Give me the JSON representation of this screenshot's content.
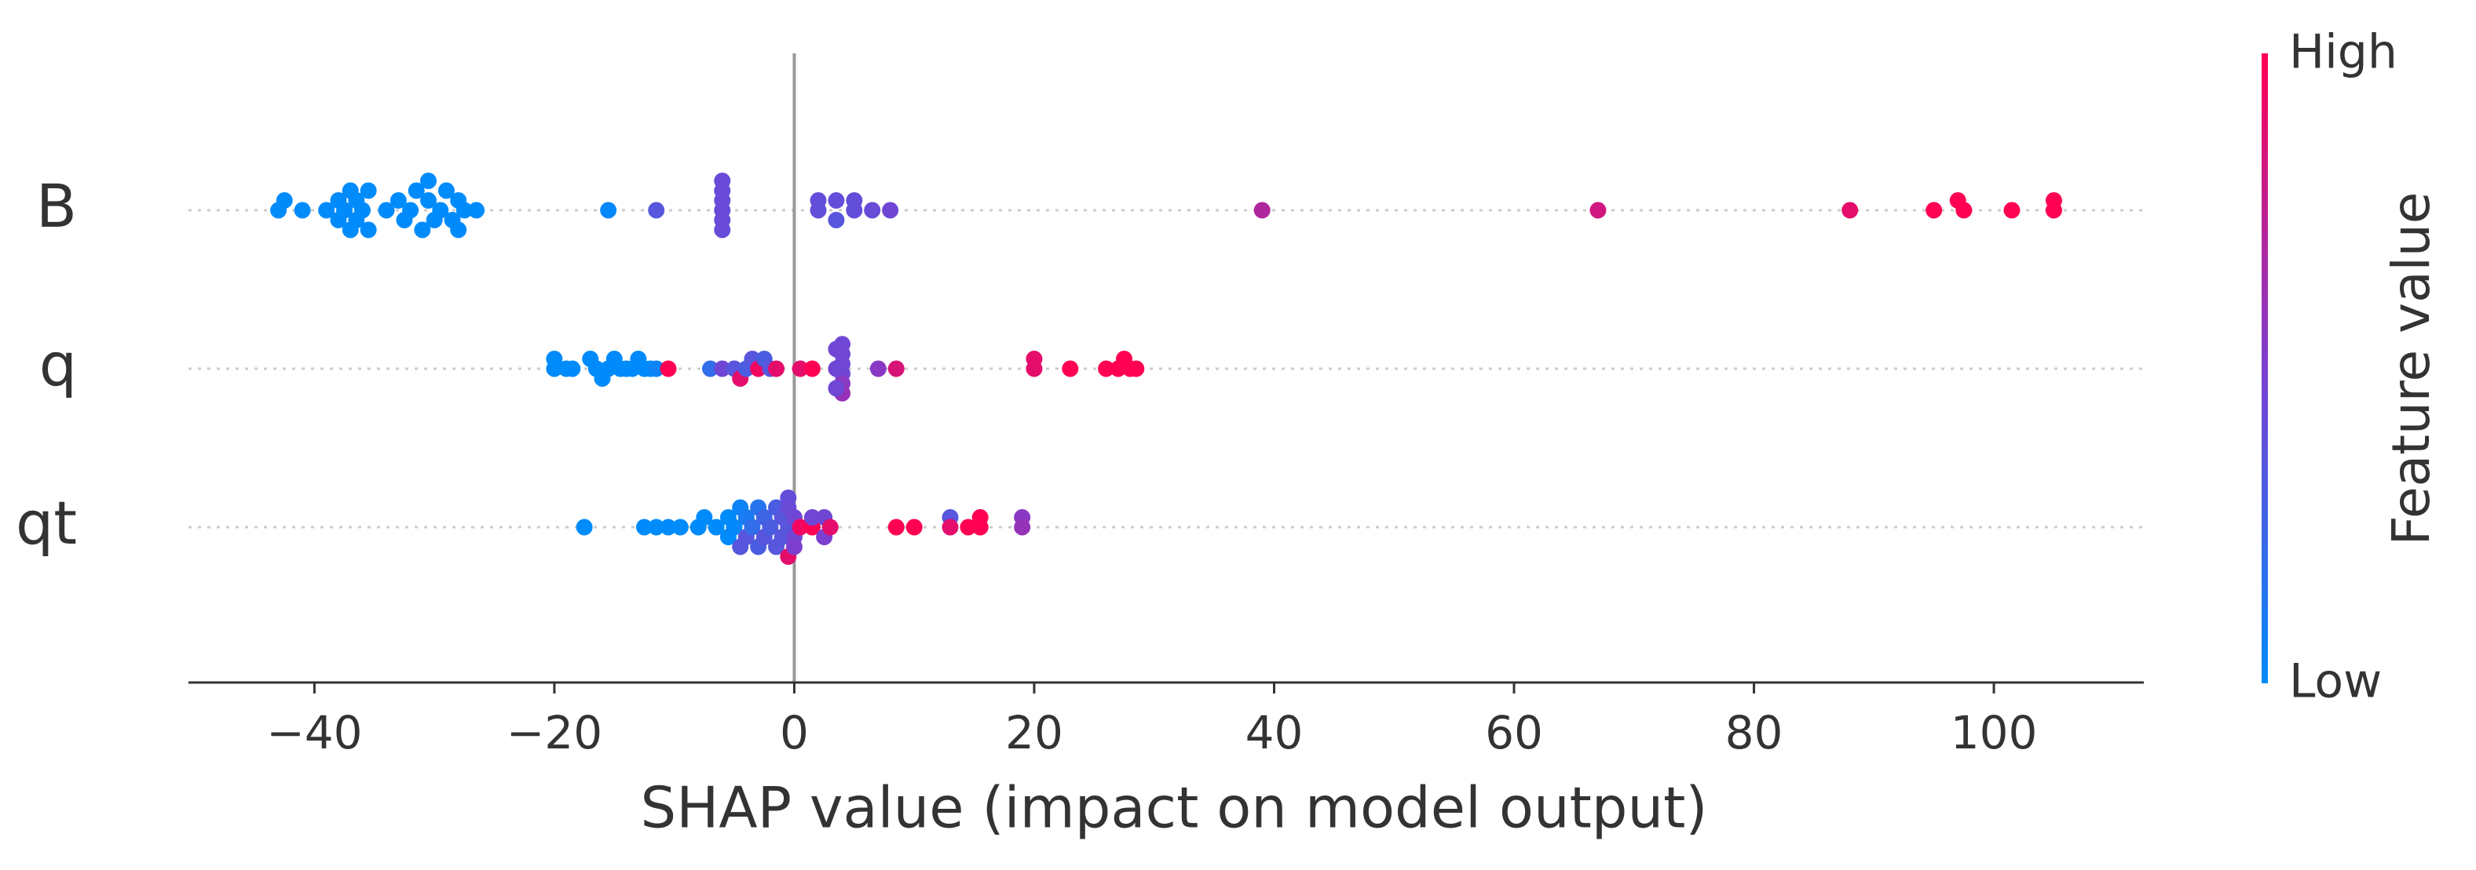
{
  "chart_data": {
    "type": "scatter",
    "subtype": "shap-beeswarm",
    "title": "",
    "xlabel": "SHAP value (impact on model output)",
    "ylabel": "",
    "xlim": [
      -50.5,
      112.5
    ],
    "xticks": [
      -40,
      -20,
      0,
      20,
      40,
      60,
      80,
      100
    ],
    "xtick_labels": [
      "−40",
      "−20",
      "0",
      "20",
      "40",
      "60",
      "80",
      "100"
    ],
    "zero_line": 0,
    "grid": false,
    "colorbar": {
      "label": "Feature value",
      "high_label": "High",
      "low_label": "Low",
      "low_color": "#008bfb",
      "mid_color": "#7c3fd0",
      "high_color": "#ff0052"
    },
    "features": [
      {
        "name": "B",
        "points": [
          {
            "x": -43.0,
            "off": 0.0,
            "v": 0.0
          },
          {
            "x": -42.5,
            "off": 1.0,
            "v": 0.0
          },
          {
            "x": -41.0,
            "off": 0.0,
            "v": 0.0
          },
          {
            "x": -39.0,
            "off": 0.0,
            "v": 0.0
          },
          {
            "x": -38.0,
            "off": 1.0,
            "v": 0.0
          },
          {
            "x": -38.0,
            "off": -1.0,
            "v": 0.0
          },
          {
            "x": -37.5,
            "off": 0.0,
            "v": 0.0
          },
          {
            "x": -37.0,
            "off": 2.0,
            "v": 0.0
          },
          {
            "x": -37.0,
            "off": -2.0,
            "v": 0.0
          },
          {
            "x": -36.5,
            "off": 1.0,
            "v": 0.0
          },
          {
            "x": -36.5,
            "off": -1.0,
            "v": 0.0
          },
          {
            "x": -36.0,
            "off": 0.0,
            "v": 0.0
          },
          {
            "x": -35.5,
            "off": 2.0,
            "v": 0.0
          },
          {
            "x": -35.5,
            "off": -2.0,
            "v": 0.0
          },
          {
            "x": -34.0,
            "off": 0.0,
            "v": 0.0
          },
          {
            "x": -33.0,
            "off": 1.0,
            "v": 0.0
          },
          {
            "x": -32.5,
            "off": -1.0,
            "v": 0.0
          },
          {
            "x": -32.0,
            "off": 0.0,
            "v": 0.0
          },
          {
            "x": -31.5,
            "off": 2.0,
            "v": 0.0
          },
          {
            "x": -31.0,
            "off": -2.0,
            "v": 0.0
          },
          {
            "x": -30.5,
            "off": 1.0,
            "v": 0.0
          },
          {
            "x": -30.5,
            "off": 3.0,
            "v": 0.0
          },
          {
            "x": -30.0,
            "off": -1.0,
            "v": 0.0
          },
          {
            "x": -29.5,
            "off": 0.0,
            "v": 0.0
          },
          {
            "x": -29.0,
            "off": 2.0,
            "v": 0.0
          },
          {
            "x": -28.5,
            "off": -1.0,
            "v": 0.0
          },
          {
            "x": -28.0,
            "off": 1.0,
            "v": 0.0
          },
          {
            "x": -28.0,
            "off": -2.0,
            "v": 0.0
          },
          {
            "x": -27.5,
            "off": 0.0,
            "v": 0.0
          },
          {
            "x": -26.5,
            "off": 0.0,
            "v": 0.0
          },
          {
            "x": -15.5,
            "off": 0.0,
            "v": 0.02
          },
          {
            "x": -11.5,
            "off": 0.0,
            "v": 0.35
          },
          {
            "x": -6.0,
            "off": 3.0,
            "v": 0.42
          },
          {
            "x": -6.0,
            "off": 2.0,
            "v": 0.42
          },
          {
            "x": -6.0,
            "off": 1.0,
            "v": 0.42
          },
          {
            "x": -6.0,
            "off": 0.0,
            "v": 0.42
          },
          {
            "x": -6.0,
            "off": -1.0,
            "v": 0.42
          },
          {
            "x": -6.0,
            "off": -2.0,
            "v": 0.42
          },
          {
            "x": 2.0,
            "off": 1.0,
            "v": 0.4
          },
          {
            "x": 2.0,
            "off": 0.0,
            "v": 0.4
          },
          {
            "x": 3.5,
            "off": 1.0,
            "v": 0.4
          },
          {
            "x": 3.5,
            "off": -1.0,
            "v": 0.35
          },
          {
            "x": 5.0,
            "off": 1.0,
            "v": 0.4
          },
          {
            "x": 5.0,
            "off": 0.0,
            "v": 0.4
          },
          {
            "x": 6.5,
            "off": 0.0,
            "v": 0.42
          },
          {
            "x": 8.0,
            "off": 0.0,
            "v": 0.45
          },
          {
            "x": 39.0,
            "off": 0.0,
            "v": 0.7
          },
          {
            "x": 67.0,
            "off": 0.0,
            "v": 0.82
          },
          {
            "x": 88.0,
            "off": 0.0,
            "v": 0.9
          },
          {
            "x": 95.0,
            "off": 0.0,
            "v": 1.0
          },
          {
            "x": 97.0,
            "off": 1.0,
            "v": 1.0
          },
          {
            "x": 97.5,
            "off": 0.0,
            "v": 1.0
          },
          {
            "x": 101.5,
            "off": 0.0,
            "v": 1.0
          },
          {
            "x": 105.0,
            "off": 1.0,
            "v": 1.0
          },
          {
            "x": 105.0,
            "off": 0.0,
            "v": 1.0
          }
        ]
      },
      {
        "name": "q",
        "points": [
          {
            "x": -20.0,
            "off": 1.0,
            "v": 0.0
          },
          {
            "x": -20.0,
            "off": 0.0,
            "v": 0.0
          },
          {
            "x": -19.0,
            "off": 0.0,
            "v": 0.0
          },
          {
            "x": -18.5,
            "off": 0.0,
            "v": 0.0
          },
          {
            "x": -17.0,
            "off": 1.0,
            "v": 0.0
          },
          {
            "x": -16.5,
            "off": 0.0,
            "v": 0.0
          },
          {
            "x": -16.0,
            "off": -1.0,
            "v": 0.0
          },
          {
            "x": -15.5,
            "off": 0.0,
            "v": 0.0
          },
          {
            "x": -15.0,
            "off": 1.0,
            "v": 0.0
          },
          {
            "x": -14.5,
            "off": 0.0,
            "v": 0.0
          },
          {
            "x": -14.0,
            "off": 0.0,
            "v": 0.0
          },
          {
            "x": -13.5,
            "off": 0.0,
            "v": 0.0
          },
          {
            "x": -13.0,
            "off": 1.0,
            "v": 0.0
          },
          {
            "x": -12.5,
            "off": 0.0,
            "v": 0.0
          },
          {
            "x": -12.0,
            "off": 0.0,
            "v": 0.0
          },
          {
            "x": -11.5,
            "off": 0.0,
            "v": 0.05
          },
          {
            "x": -10.5,
            "off": 0.0,
            "v": 1.0
          },
          {
            "x": -7.0,
            "off": 0.0,
            "v": 0.2
          },
          {
            "x": -6.0,
            "off": 0.0,
            "v": 0.45
          },
          {
            "x": -5.0,
            "off": 0.0,
            "v": 0.35
          },
          {
            "x": -4.5,
            "off": -1.0,
            "v": 0.9
          },
          {
            "x": -4.0,
            "off": 0.0,
            "v": 0.3
          },
          {
            "x": -3.5,
            "off": 1.0,
            "v": 0.35
          },
          {
            "x": -3.0,
            "off": 0.0,
            "v": 0.95
          },
          {
            "x": -2.5,
            "off": 1.0,
            "v": 0.3
          },
          {
            "x": -2.0,
            "off": 0.0,
            "v": 0.35
          },
          {
            "x": -1.5,
            "off": 0.0,
            "v": 0.9
          },
          {
            "x": 0.5,
            "off": 0.0,
            "v": 0.9
          },
          {
            "x": 1.5,
            "off": 0.0,
            "v": 1.0
          },
          {
            "x": 4.0,
            "off": 2.5,
            "v": 0.45
          },
          {
            "x": 4.0,
            "off": 1.5,
            "v": 0.45
          },
          {
            "x": 4.0,
            "off": 0.5,
            "v": 0.45
          },
          {
            "x": 4.0,
            "off": -0.5,
            "v": 0.45
          },
          {
            "x": 4.0,
            "off": -1.5,
            "v": 0.55
          },
          {
            "x": 4.0,
            "off": -2.5,
            "v": 0.6
          },
          {
            "x": 3.5,
            "off": 2.0,
            "v": 0.45
          },
          {
            "x": 3.5,
            "off": 0.0,
            "v": 0.45
          },
          {
            "x": 3.5,
            "off": -2.0,
            "v": 0.45
          },
          {
            "x": 7.0,
            "off": 0.0,
            "v": 0.55
          },
          {
            "x": 8.5,
            "off": 0.0,
            "v": 0.85
          },
          {
            "x": 20.0,
            "off": 1.0,
            "v": 0.9
          },
          {
            "x": 20.0,
            "off": 0.0,
            "v": 0.9
          },
          {
            "x": 23.0,
            "off": 0.0,
            "v": 1.0
          },
          {
            "x": 26.0,
            "off": 0.0,
            "v": 1.0
          },
          {
            "x": 27.0,
            "off": 0.0,
            "v": 1.0
          },
          {
            "x": 27.5,
            "off": 1.0,
            "v": 1.0
          },
          {
            "x": 28.0,
            "off": 0.0,
            "v": 1.0
          },
          {
            "x": 28.5,
            "off": 0.0,
            "v": 1.0
          }
        ]
      },
      {
        "name": "qt",
        "points": [
          {
            "x": -17.5,
            "off": 0.0,
            "v": 0.0
          },
          {
            "x": -12.5,
            "off": 0.0,
            "v": 0.0
          },
          {
            "x": -11.5,
            "off": 0.0,
            "v": 0.0
          },
          {
            "x": -10.5,
            "off": 0.0,
            "v": 0.0
          },
          {
            "x": -9.5,
            "off": 0.0,
            "v": 0.0
          },
          {
            "x": -8.0,
            "off": 0.0,
            "v": 0.0
          },
          {
            "x": -7.5,
            "off": 1.0,
            "v": 0.0
          },
          {
            "x": -6.5,
            "off": 0.0,
            "v": 0.0
          },
          {
            "x": -5.5,
            "off": 1.0,
            "v": 0.0
          },
          {
            "x": -5.5,
            "off": -1.0,
            "v": 0.0
          },
          {
            "x": -5.0,
            "off": 0.0,
            "v": 0.02
          },
          {
            "x": -4.5,
            "off": 2.0,
            "v": 0.05
          },
          {
            "x": -4.5,
            "off": -2.0,
            "v": 0.35
          },
          {
            "x": -4.0,
            "off": 1.0,
            "v": 0.1
          },
          {
            "x": -4.0,
            "off": -1.0,
            "v": 0.35
          },
          {
            "x": -3.5,
            "off": 0.0,
            "v": 0.2
          },
          {
            "x": -3.0,
            "off": 2.0,
            "v": 0.15
          },
          {
            "x": -3.0,
            "off": -2.0,
            "v": 0.3
          },
          {
            "x": -2.5,
            "off": 1.0,
            "v": 0.25
          },
          {
            "x": -2.5,
            "off": -1.0,
            "v": 0.35
          },
          {
            "x": -2.0,
            "off": 0.0,
            "v": 0.3
          },
          {
            "x": -1.5,
            "off": 2.0,
            "v": 0.3
          },
          {
            "x": -1.5,
            "off": -2.0,
            "v": 0.35
          },
          {
            "x": -1.0,
            "off": 1.0,
            "v": 0.35
          },
          {
            "x": -1.0,
            "off": -1.0,
            "v": 0.35
          },
          {
            "x": -0.5,
            "off": 3.0,
            "v": 0.4
          },
          {
            "x": -0.5,
            "off": 2.0,
            "v": 0.42
          },
          {
            "x": -0.5,
            "off": 0.0,
            "v": 0.35
          },
          {
            "x": -0.5,
            "off": -3.0,
            "v": 0.9
          },
          {
            "x": 0.0,
            "off": 1.0,
            "v": 0.45
          },
          {
            "x": 0.0,
            "off": -1.0,
            "v": 0.45
          },
          {
            "x": 0.0,
            "off": -2.0,
            "v": 0.5
          },
          {
            "x": 0.5,
            "off": 0.0,
            "v": 0.95
          },
          {
            "x": 1.5,
            "off": 0.0,
            "v": 1.0
          },
          {
            "x": 1.5,
            "off": 1.0,
            "v": 0.45
          },
          {
            "x": 2.5,
            "off": 1.0,
            "v": 0.45
          },
          {
            "x": 2.5,
            "off": -1.0,
            "v": 0.5
          },
          {
            "x": 3.0,
            "off": 0.0,
            "v": 0.9
          },
          {
            "x": 8.5,
            "off": 0.0,
            "v": 1.0
          },
          {
            "x": 10.0,
            "off": 0.0,
            "v": 1.0
          },
          {
            "x": 13.0,
            "off": 1.0,
            "v": 0.35
          },
          {
            "x": 13.0,
            "off": 0.0,
            "v": 0.9
          },
          {
            "x": 14.5,
            "off": 0.0,
            "v": 1.0
          },
          {
            "x": 15.5,
            "off": 1.0,
            "v": 1.0
          },
          {
            "x": 15.5,
            "off": 0.0,
            "v": 1.0
          },
          {
            "x": 19.0,
            "off": 1.0,
            "v": 0.55
          },
          {
            "x": 19.0,
            "off": 0.0,
            "v": 0.6
          }
        ]
      }
    ]
  }
}
